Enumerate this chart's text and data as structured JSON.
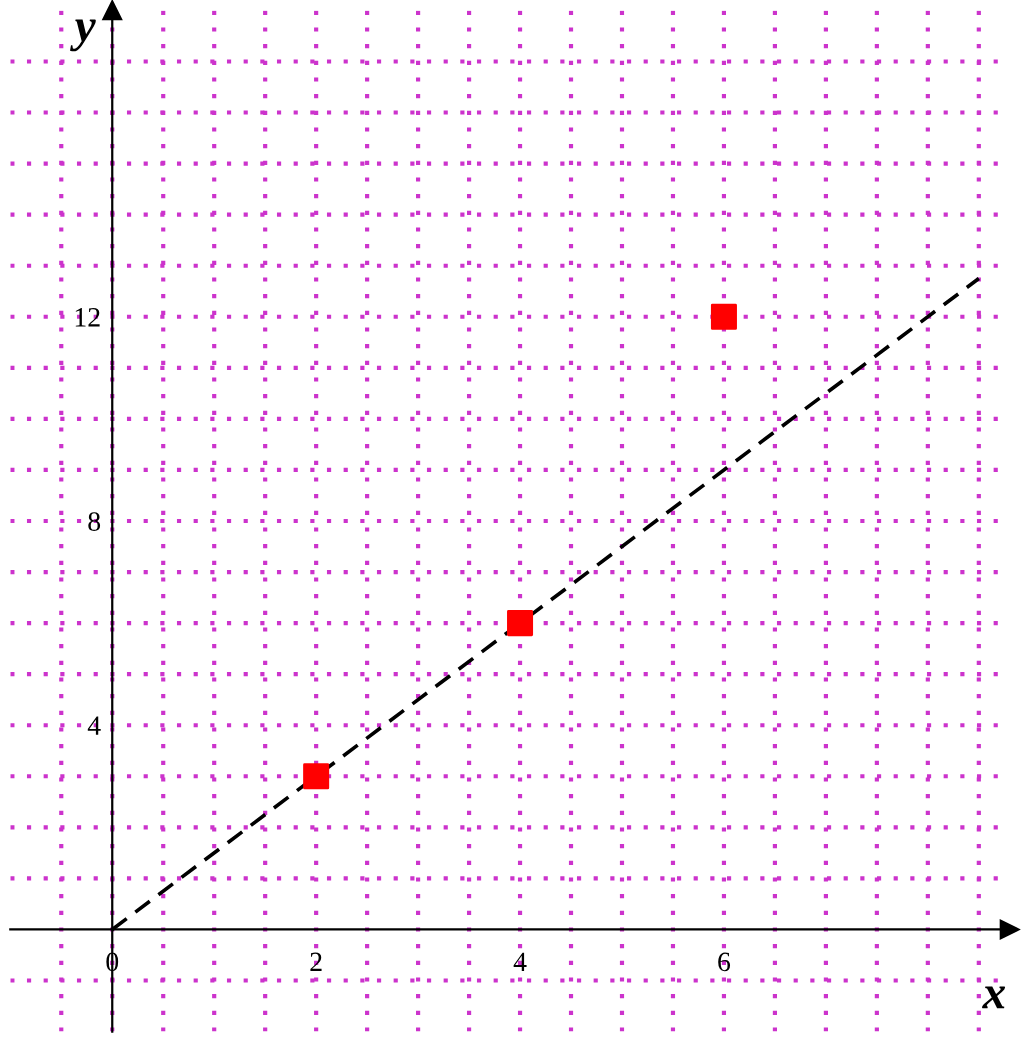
{
  "chart_data": {
    "type": "scatter",
    "xlabel": "x",
    "ylabel": "y",
    "xlim": [
      -1,
      8.8
    ],
    "ylim": [
      -2,
      18
    ],
    "xticks": [
      {
        "value": -0.5,
        "label": null
      },
      0,
      {
        "value": 0.5,
        "label": null
      },
      {
        "value": 1,
        "label": null
      },
      {
        "value": 1.5,
        "label": null
      },
      2,
      {
        "value": 2.5,
        "label": null
      },
      {
        "value": 3,
        "label": null
      },
      {
        "value": 3.5,
        "label": null
      },
      4,
      {
        "value": 4.5,
        "label": null
      },
      {
        "value": 5,
        "label": null
      },
      {
        "value": 5.5,
        "label": null
      },
      6,
      {
        "value": 6.5,
        "label": null
      },
      {
        "value": 7,
        "label": null
      },
      {
        "value": 7.5,
        "label": null
      },
      {
        "value": 8,
        "label": null
      },
      {
        "value": 8.5,
        "label": null
      }
    ],
    "yticks": [
      {
        "value": -1,
        "label": null
      },
      {
        "value": 1,
        "label": null
      },
      {
        "value": 2,
        "label": null
      },
      {
        "value": 3,
        "label": null
      },
      4,
      {
        "value": 5,
        "label": null
      },
      {
        "value": 6,
        "label": null
      },
      {
        "value": 7,
        "label": null
      },
      8,
      {
        "value": 9,
        "label": null
      },
      {
        "value": 10,
        "label": null
      },
      {
        "value": 11,
        "label": null
      },
      12,
      {
        "value": 13,
        "label": null
      },
      {
        "value": 14,
        "label": null
      },
      {
        "value": 15,
        "label": null
      },
      {
        "value": 16,
        "label": null
      },
      {
        "value": 17,
        "label": null
      }
    ],
    "grid": true,
    "legend": false,
    "series": [
      {
        "x": [
          2,
          4,
          6
        ],
        "values": [
          3,
          6,
          12
        ],
        "color": "#ff0000",
        "marker": "square"
      },
      {
        "type": "line",
        "x": [
          0,
          8.5
        ],
        "values": [
          0,
          12.75
        ],
        "color": "#000000",
        "line_style": "dashed",
        "marker": "none"
      }
    ]
  }
}
